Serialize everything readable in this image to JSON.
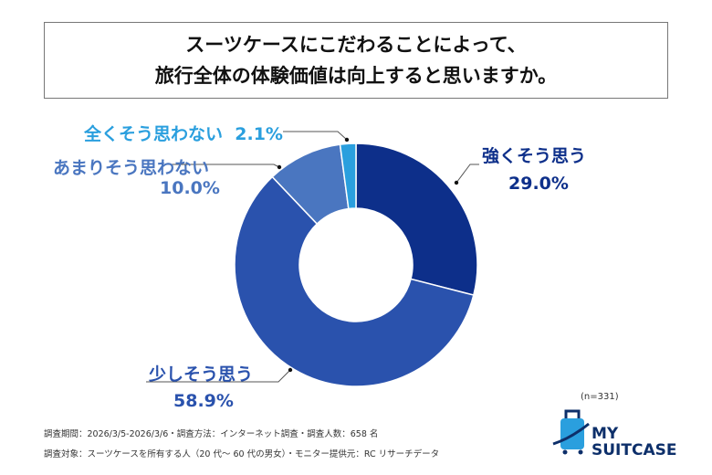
{
  "title": {
    "line1": "スーツケースにこだわることによって、",
    "line2": "旅行全体の体験価値は向上すると思いますか。"
  },
  "chart_data": {
    "type": "pie",
    "donut": true,
    "categories": [
      "強くそう思う",
      "少しそう思う",
      "あまりそう思わない",
      "全くそう思わない"
    ],
    "values": [
      29.0,
      58.9,
      10.0,
      2.1
    ],
    "value_labels": [
      "29.0%",
      "58.9%",
      "10.0%",
      "2.1%"
    ],
    "colors": [
      "#0d2f8a",
      "#2a52ad",
      "#4a76c0",
      "#2a9fde"
    ],
    "start": "top",
    "direction": "clockwise"
  },
  "sample": "(n=331)",
  "footer": {
    "line1": "調査期間：2026/3/5-2026/3/6・調査方法：インターネット調査・調査人数：658 名",
    "line2": "調査対象：スーツケースを所有する人（20 代～ 60 代の男女）・モニター提供元：RC リサーチデータ"
  },
  "logo": {
    "line1": "MY",
    "line2": "SUITCASE"
  }
}
